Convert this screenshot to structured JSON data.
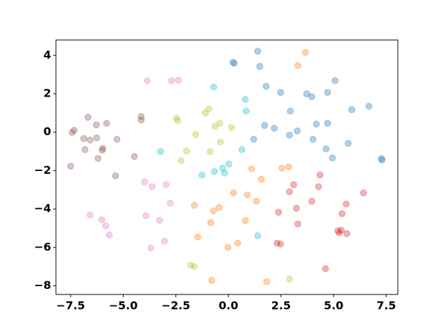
{
  "chart_data": {
    "type": "scatter",
    "alpha": 0.35,
    "xlim": [
      -8.2,
      8.05
    ],
    "ylim": [
      -8.45,
      4.8
    ],
    "xticks": [
      {
        "value": -7.5,
        "label": "−7.5"
      },
      {
        "value": -5,
        "label": "−5.0"
      },
      {
        "value": -2.5,
        "label": "−2.5"
      },
      {
        "value": 0,
        "label": "0.0"
      },
      2.5,
      {
        "value": 5,
        "label": "5.0"
      },
      7.5
    ],
    "yticks": [
      {
        "value": -8,
        "label": "−8"
      },
      {
        "value": -6,
        "label": "−6"
      },
      {
        "value": -4,
        "label": "−4"
      },
      {
        "value": -2,
        "label": "−2"
      },
      0,
      2,
      4
    ],
    "series": [
      {
        "color": "#1f77b4",
        "x": [
          1.39,
          0.21,
          0.28,
          1.49,
          5.07,
          1.79,
          2.48,
          3.72,
          3.96,
          4.71,
          6.68,
          5.86,
          2.94,
          1.72,
          2.18,
          3.27,
          2.9,
          4.18,
          4.71,
          1.2,
          4.02,
          4.64,
          5.69,
          4.94,
          7.27,
          7.3
        ],
        "values": [
          4.22,
          3.64,
          3.58,
          3.43,
          2.68,
          2.39,
          2.07,
          2.0,
          1.85,
          2.07,
          1.35,
          1.17,
          1.1,
          0.35,
          0.2,
          0.06,
          -0.15,
          0.42,
          0.46,
          -0.37,
          -0.37,
          -0.87,
          -0.58,
          -1.34,
          -1.37,
          -1.45
        ]
      },
      {
        "color": "#17becf",
        "x": [
          -0.7,
          0.8,
          0.84,
          0.64,
          -3.23,
          0.02,
          -0.28,
          -0.18,
          -0.67,
          -1.26,
          1.39
        ],
        "values": [
          2.35,
          1.71,
          1.1,
          -0.91,
          -1.01,
          -1.66,
          -1.87,
          -2.13,
          -2.05,
          -2.23,
          -5.39
        ]
      },
      {
        "color": "#ff7f0e",
        "x": [
          3.66,
          3.3,
          1.1,
          1.56,
          2.54,
          2.87,
          0.25,
          0.9,
          1.33,
          -1.62,
          -0.44,
          -0.71,
          -0.84,
          0.8,
          -1.46,
          0.44,
          -0.02,
          -0.8,
          1.82
        ],
        "values": [
          4.15,
          3.47,
          -1.91,
          -2.45,
          -1.87,
          -1.8,
          -3.16,
          -3.27,
          -3.6,
          -3.81,
          -3.92,
          -4.1,
          -4.71,
          -4.6,
          -5.46,
          -5.78,
          -6.0,
          -7.72,
          -7.79
        ]
      },
      {
        "color": "#d62728",
        "x": [
          4.35,
          3.1,
          2.9,
          4.28,
          3.96,
          6.42,
          5.6,
          3.23,
          2.38,
          5.4,
          3.3,
          5.2,
          5.36,
          5.27,
          5.63,
          2.31,
          2.48,
          4.61
        ],
        "values": [
          -2.23,
          -2.74,
          -3.1,
          -2.84,
          -3.6,
          -3.16,
          -3.74,
          -3.96,
          -4.17,
          -4.24,
          -4.78,
          -5.14,
          -5.1,
          -5.24,
          -5.28,
          -5.78,
          -5.82,
          -7.11
        ]
      },
      {
        "color": "#8c564b",
        "x": [
          -6.68,
          -6.28,
          -5.79,
          -4.15,
          -4.15,
          -7.33,
          -7.43,
          -6.88,
          -6.58,
          -6.26,
          -5.3,
          -5.97,
          -6.0,
          -6.82,
          -6.2,
          -4.47,
          -7.5,
          -5.37
        ],
        "values": [
          0.78,
          0.38,
          0.46,
          0.81,
          0.63,
          0.1,
          -0.01,
          -0.33,
          -0.41,
          -0.3,
          -0.37,
          -0.84,
          -0.94,
          -0.91,
          -1.37,
          -1.27,
          -1.77,
          -2.27
        ]
      },
      {
        "color": "#e377c2",
        "x": [
          -3.86,
          -2.71,
          -2.38,
          -3.99,
          -3.63,
          -2.97,
          -2.77,
          -3.92,
          -3.27,
          -6.58,
          -6.02,
          -5.83,
          -5.66,
          -3.04,
          -3.69
        ],
        "values": [
          2.68,
          2.68,
          2.71,
          -2.59,
          -2.84,
          -2.73,
          -3.7,
          -4.35,
          -4.6,
          -4.31,
          -4.56,
          -4.88,
          -5.35,
          -5.67,
          -6.03
        ]
      },
      {
        "color": "#bcbd22",
        "x": [
          -0.94,
          -1.1,
          -2.48,
          -2.41,
          -0.41,
          -0.64,
          0.15,
          -1.56,
          -0.38,
          -1.99,
          -0.87,
          -2.25,
          -1.79,
          -1.62,
          2.9
        ],
        "values": [
          1.21,
          0.99,
          0.74,
          0.6,
          0.46,
          0.31,
          0.24,
          -0.12,
          -0.51,
          -0.98,
          -1.01,
          -1.48,
          -6.93,
          -7.0,
          -7.65
        ]
      }
    ]
  }
}
